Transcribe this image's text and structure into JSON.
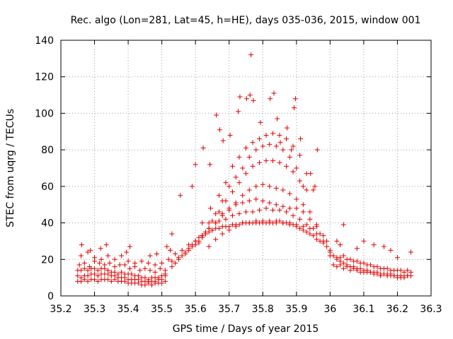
{
  "chart_data": {
    "type": "scatter",
    "title": "Rec. algo (Lon=281, Lat=45, h=HE), days 035-036, 2015, window 001",
    "xlabel": "GPS time / Days of year 2015",
    "ylabel": "STEC from uqrg / TECUs",
    "xlim": [
      35.2,
      36.3
    ],
    "ylim": [
      0,
      140
    ],
    "xticks": [
      "35.2",
      "35.3",
      "35.4",
      "35.5",
      "35.6",
      "35.7",
      "35.8",
      "35.9",
      "36",
      "36.1",
      "36.2",
      "36.3"
    ],
    "yticks": [
      "0",
      "20",
      "40",
      "60",
      "80",
      "100",
      "120",
      "140"
    ],
    "grid": true,
    "marker": "+",
    "color": "#e00000",
    "series": [
      {
        "name": "STEC",
        "x": [
          35.25,
          35.26,
          35.27,
          35.28,
          35.29,
          35.3,
          35.31,
          35.32,
          35.33,
          35.34,
          35.35,
          35.36,
          35.37,
          35.38,
          35.39,
          35.4,
          35.41,
          35.42,
          35.43,
          35.44,
          35.45,
          35.46,
          35.47,
          35.48,
          35.49,
          35.5,
          35.51,
          35.25,
          35.26,
          35.27,
          35.28,
          35.29,
          35.3,
          35.31,
          35.32,
          35.33,
          35.34,
          35.35,
          35.36,
          35.37,
          35.38,
          35.39,
          35.4,
          35.41,
          35.42,
          35.43,
          35.44,
          35.45,
          35.46,
          35.47,
          35.48,
          35.49,
          35.5,
          35.51,
          35.25,
          35.26,
          35.27,
          35.28,
          35.29,
          35.3,
          35.31,
          35.32,
          35.33,
          35.34,
          35.35,
          35.36,
          35.37,
          35.38,
          35.39,
          35.4,
          35.41,
          35.42,
          35.43,
          35.44,
          35.45,
          35.46,
          35.47,
          35.48,
          35.49,
          35.5,
          35.51,
          35.255,
          35.27,
          35.285,
          35.3,
          35.315,
          35.33,
          35.345,
          35.36,
          35.375,
          35.39,
          35.405,
          35.42,
          35.435,
          35.45,
          35.465,
          35.48,
          35.495,
          35.51,
          35.26,
          35.28,
          35.3,
          35.32,
          35.34,
          35.36,
          35.38,
          35.4,
          35.42,
          35.44,
          35.46,
          35.48,
          35.5,
          35.52,
          35.262,
          35.288,
          35.318,
          35.335,
          35.395,
          35.405,
          35.465,
          35.485,
          35.515,
          35.525,
          35.53,
          35.54,
          35.55,
          35.56,
          35.57,
          35.58,
          35.59,
          35.6,
          35.61,
          35.62,
          35.63,
          35.64,
          35.65,
          35.66,
          35.67,
          35.68,
          35.69,
          35.7,
          35.71,
          35.72,
          35.73,
          35.74,
          35.75,
          35.76,
          35.77,
          35.78,
          35.79,
          35.8,
          35.81,
          35.82,
          35.83,
          35.84,
          35.85,
          35.86,
          35.87,
          35.88,
          35.89,
          35.9,
          35.91,
          35.92,
          35.93,
          35.94,
          35.95,
          35.96,
          35.97,
          35.98,
          35.99,
          36.0,
          35.53,
          35.55,
          35.57,
          35.59,
          35.61,
          35.63,
          35.65,
          35.67,
          35.69,
          35.71,
          35.73,
          35.75,
          35.77,
          35.79,
          35.81,
          35.83,
          35.85,
          35.87,
          35.89,
          35.91,
          35.93,
          35.95,
          35.97,
          35.99,
          35.54,
          35.56,
          35.58,
          35.6,
          35.62,
          35.64,
          35.66,
          35.68,
          35.7,
          35.72,
          35.74,
          35.76,
          35.78,
          35.8,
          35.82,
          35.84,
          35.86,
          35.88,
          35.9,
          35.92,
          35.94,
          35.96,
          35.98,
          35.58,
          35.6,
          35.62,
          35.64,
          35.66,
          35.68,
          35.7,
          35.72,
          35.74,
          35.76,
          35.78,
          35.8,
          35.82,
          35.84,
          35.86,
          35.88,
          35.9,
          35.92,
          35.94,
          35.96,
          35.61,
          35.63,
          35.65,
          35.67,
          35.69,
          35.71,
          35.73,
          35.75,
          35.77,
          35.79,
          35.81,
          35.83,
          35.85,
          35.87,
          35.89,
          35.91,
          35.93,
          35.62,
          35.64,
          35.66,
          35.68,
          35.7,
          35.72,
          35.74,
          35.76,
          35.78,
          35.8,
          35.82,
          35.84,
          35.86,
          35.88,
          35.9,
          35.92,
          35.62,
          35.645,
          35.67,
          35.69,
          35.71,
          35.73,
          35.75,
          35.77,
          35.79,
          35.81,
          35.83,
          35.85,
          35.87,
          35.89,
          35.91,
          35.93,
          35.95,
          35.53,
          35.555,
          35.59,
          35.6,
          35.623,
          35.643,
          35.662,
          35.672,
          35.682,
          35.703,
          35.727,
          35.732,
          35.752,
          35.762,
          35.765,
          35.772,
          35.793,
          35.822,
          35.833,
          35.843,
          35.852,
          35.872,
          35.885,
          35.893,
          35.897,
          35.912,
          35.942,
          35.955,
          35.962,
          36.04,
          35.64,
          35.66,
          35.68,
          35.7,
          35.72,
          35.74,
          35.76,
          35.78,
          35.8,
          35.82,
          35.84,
          35.86,
          35.88,
          35.9,
          35.92,
          35.94,
          35.96,
          35.98,
          36.0,
          36.01,
          36.02,
          36.03,
          36.04,
          36.05,
          36.06,
          36.07,
          36.08,
          36.09,
          36.1,
          36.11,
          36.12,
          36.13,
          36.14,
          36.15,
          36.16,
          36.17,
          36.18,
          36.19,
          36.2,
          36.21,
          36.22,
          36.23,
          36.24,
          36.01,
          36.02,
          36.03,
          36.04,
          36.05,
          36.06,
          36.07,
          36.08,
          36.09,
          36.1,
          36.11,
          36.12,
          36.13,
          36.14,
          36.15,
          36.16,
          36.17,
          36.18,
          36.19,
          36.2,
          36.21,
          36.22,
          36.23,
          36.24,
          36.0,
          36.02,
          36.04,
          36.06,
          36.08,
          36.1,
          36.12,
          36.14,
          36.16,
          36.18,
          36.2,
          36.22,
          36.24,
          36.03,
          36.05,
          36.07,
          36.09,
          36.11,
          36.13,
          36.15,
          36.17,
          36.19,
          36.21,
          36.23,
          36.02,
          36.03,
          36.08,
          36.1,
          36.13,
          36.16,
          36.18,
          36.2,
          36.24
        ],
        "y": [
          8,
          8,
          9,
          8,
          9,
          9,
          8,
          9,
          9,
          9,
          8,
          9,
          8,
          8,
          8,
          7,
          7,
          7,
          7,
          6,
          6,
          7,
          6,
          7,
          7,
          7,
          8,
          11,
          10,
          11,
          11,
          12,
          12,
          11,
          12,
          12,
          12,
          11,
          11,
          10,
          10,
          10,
          9,
          9,
          9,
          9,
          8,
          8,
          8,
          8,
          8,
          9,
          9,
          11,
          14,
          14,
          15,
          14,
          15,
          15,
          14,
          15,
          15,
          14,
          13,
          13,
          12,
          13,
          12,
          12,
          12,
          11,
          11,
          10,
          10,
          9,
          10,
          10,
          10,
          11,
          12,
          17,
          18,
          16,
          19,
          18,
          17,
          18,
          16,
          17,
          17,
          15,
          16,
          14,
          15,
          14,
          13,
          15,
          14,
          22,
          24,
          21,
          20,
          22,
          20,
          22,
          19,
          18,
          19,
          18,
          17,
          18,
          20,
          28,
          25,
          26,
          28,
          24,
          27,
          22,
          23,
          27,
          25,
          16,
          18,
          20,
          22,
          24,
          26,
          28,
          30,
          32,
          33,
          34,
          35,
          36,
          37,
          37,
          38,
          38,
          38,
          39,
          39,
          39,
          40,
          40,
          40,
          40,
          40,
          40,
          40,
          40,
          40,
          40,
          40,
          41,
          40,
          40,
          39,
          39,
          38,
          37,
          36,
          35,
          34,
          33,
          31,
          30,
          29,
          27,
          25,
          19,
          21,
          23,
          27,
          29,
          34,
          36,
          41,
          42,
          44,
          45,
          46,
          46,
          47,
          48,
          47,
          47,
          46,
          44,
          42,
          39,
          37,
          34,
          30,
          23,
          25,
          28,
          30,
          33,
          37,
          40,
          44,
          47,
          50,
          51,
          52,
          53,
          52,
          51,
          50,
          49,
          48,
          48,
          46,
          42,
          39,
          33,
          25,
          28,
          32,
          37,
          40,
          45,
          48,
          51,
          55,
          58,
          60,
          61,
          60,
          59,
          58,
          56,
          53,
          50,
          46,
          38,
          30,
          35,
          41,
          46,
          52,
          57,
          62,
          67,
          71,
          73,
          74,
          74,
          73,
          71,
          68,
          63,
          58,
          33,
          40,
          45,
          52,
          60,
          65,
          70,
          76,
          80,
          82,
          83,
          82,
          80,
          76,
          70,
          60,
          40,
          48,
          55,
          62,
          71,
          76,
          81,
          84,
          86,
          88,
          89,
          88,
          86,
          82,
          77,
          67,
          58,
          34,
          55,
          60,
          72,
          81,
          72,
          99,
          91,
          85,
          88,
          101,
          109,
          108,
          110,
          132,
          107,
          95,
          108,
          111,
          97,
          84,
          92,
          80,
          103,
          108,
          86,
          67,
          60,
          80,
          39,
          27,
          31,
          34,
          36,
          38,
          40,
          40,
          41,
          41,
          41,
          41,
          40,
          40,
          39,
          38,
          37,
          34,
          30,
          24,
          22,
          20,
          19,
          18,
          17,
          16,
          16,
          15,
          15,
          14,
          14,
          13,
          13,
          13,
          12,
          12,
          12,
          12,
          11,
          11,
          11,
          11,
          11,
          11,
          17,
          16,
          17,
          15,
          16,
          14,
          15,
          14,
          13,
          13,
          13,
          13,
          12,
          12,
          11,
          12,
          11,
          11,
          11,
          10,
          10,
          10,
          11,
          11,
          22,
          21,
          22,
          20,
          19,
          18,
          17,
          16,
          15,
          14,
          14,
          13,
          13,
          21,
          20,
          19,
          18,
          17,
          16,
          15,
          15,
          14,
          14,
          14,
          30,
          28,
          26,
          30,
          28,
          27,
          25,
          21,
          24
        ]
      }
    ]
  }
}
